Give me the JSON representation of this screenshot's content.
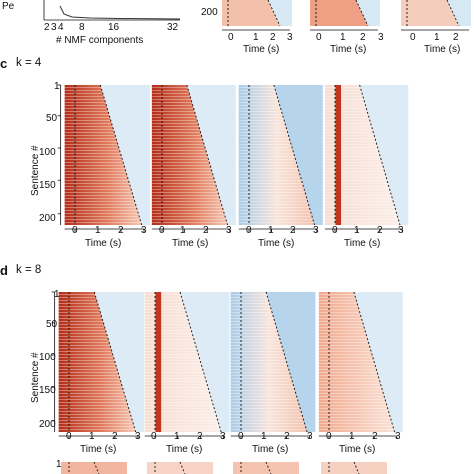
{
  "panel_top": {
    "ylabel_fragment": "Pe",
    "xticks": [
      "2",
      "3",
      "4",
      "8",
      "16",
      "32"
    ],
    "xlabel": "# NMF components",
    "raster_ytick": "200",
    "raster_xticks": [
      "0",
      "1",
      "2",
      "3"
    ],
    "raster_xlabel": "Time (s)"
  },
  "panel_c": {
    "letter": "c",
    "k_label": "k = 4",
    "ylabel": "Sentence #",
    "yticks": [
      "1",
      "50",
      "100",
      "150",
      "200"
    ],
    "xticks": [
      "0",
      "1",
      "2",
      "3"
    ],
    "xlabel": "Time (s)",
    "components": [
      {
        "name": "c1",
        "style": "red-heavy"
      },
      {
        "name": "c2",
        "style": "red-heavy"
      },
      {
        "name": "c3",
        "style": "blue-mix"
      },
      {
        "name": "c4",
        "style": "onset-red"
      }
    ]
  },
  "panel_d": {
    "letter": "d",
    "k_label": "k = 8",
    "ylabel": "Sentence #",
    "yticks": [
      "1",
      "50",
      "100",
      "150",
      "200"
    ],
    "xticks": [
      "0",
      "1",
      "2",
      "3"
    ],
    "xlabel": "Time (s)",
    "components": [
      {
        "name": "d1",
        "style": "red-heavy"
      },
      {
        "name": "d2",
        "style": "onset-red"
      },
      {
        "name": "d3",
        "style": "blue-mix"
      },
      {
        "name": "d4",
        "style": "light-red"
      }
    ]
  },
  "panel_bottom": {
    "ytick": "1"
  },
  "colors": {
    "red": "#c1361f",
    "light_red": "#f3b39a",
    "blue": "#6aa8d6",
    "light_blue": "#cfe3f3",
    "axis": "#111111"
  }
}
